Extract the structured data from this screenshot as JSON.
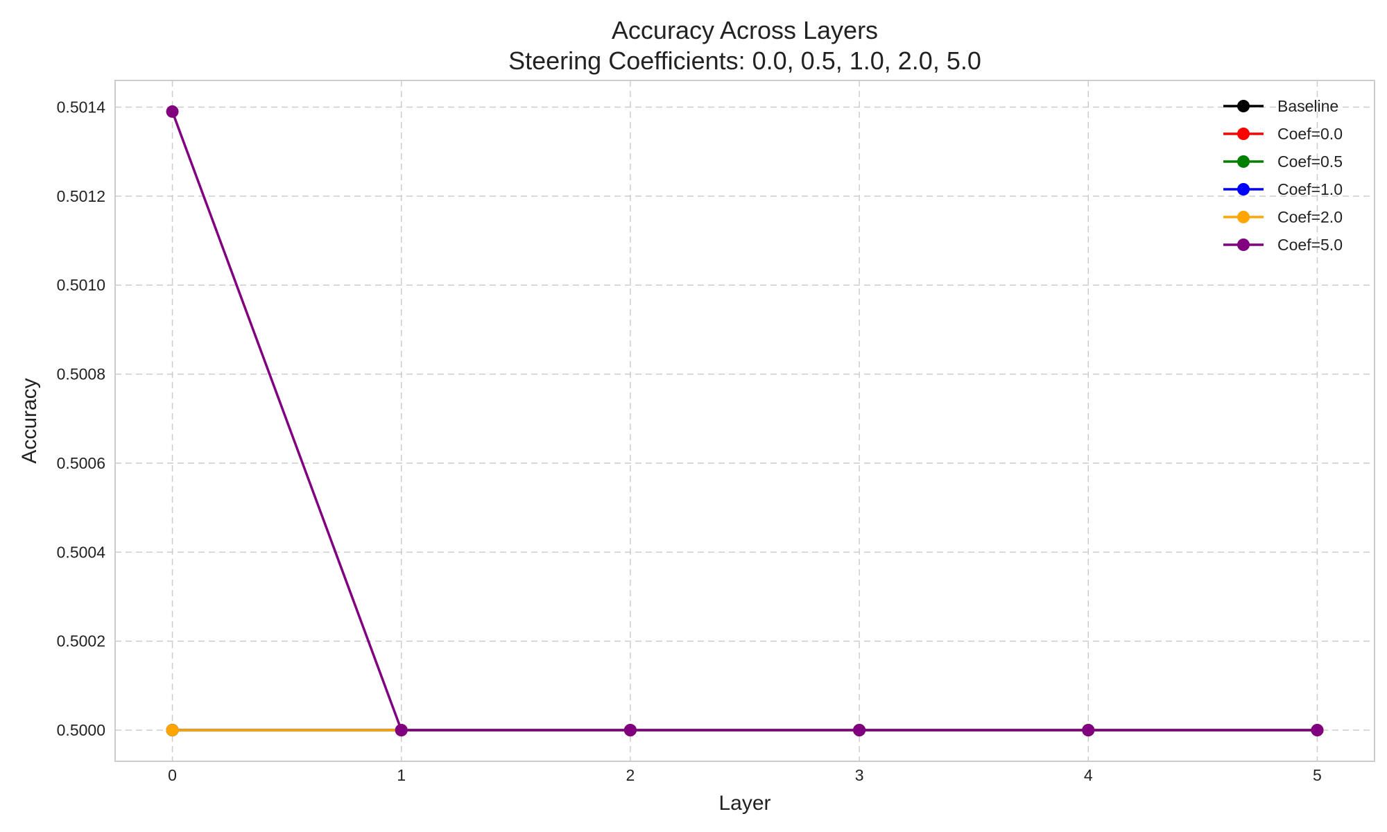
{
  "chart_data": {
    "type": "line",
    "title": "Accuracy Across Layers",
    "subtitle": "Steering Coefficients: 0.0, 0.5, 1.0, 2.0, 5.0",
    "xlabel": "Layer",
    "ylabel": "Accuracy",
    "x": [
      0,
      1,
      2,
      3,
      4,
      5
    ],
    "x_ticks": [
      "0",
      "1",
      "2",
      "3",
      "4",
      "5"
    ],
    "y_ticks": [
      "0.5000",
      "0.5002",
      "0.5004",
      "0.5006",
      "0.5008",
      "0.5010",
      "0.5012",
      "0.5014"
    ],
    "xlim": [
      -0.25,
      5.25
    ],
    "ylim": [
      0.49993,
      0.50146
    ],
    "grid": true,
    "legend_position": "top-right",
    "series": [
      {
        "name": "Baseline",
        "color": "#000000",
        "values": [
          0.5,
          0.5,
          0.5,
          0.5,
          0.5,
          0.5
        ]
      },
      {
        "name": "Coef=0.0",
        "color": "#ff0000",
        "values": [
          0.5,
          0.5,
          0.5,
          0.5,
          0.5,
          0.5
        ]
      },
      {
        "name": "Coef=0.5",
        "color": "#008000",
        "values": [
          0.5,
          0.5,
          0.5,
          0.5,
          0.5,
          0.5
        ]
      },
      {
        "name": "Coef=1.0",
        "color": "#0000ff",
        "values": [
          0.5,
          0.5,
          0.5,
          0.5,
          0.5,
          0.5
        ]
      },
      {
        "name": "Coef=2.0",
        "color": "#ffa500",
        "values": [
          0.5,
          0.5,
          0.5,
          0.5,
          0.5,
          0.5
        ]
      },
      {
        "name": "Coef=5.0",
        "color": "#800080",
        "values": [
          0.50139,
          0.5,
          0.5,
          0.5,
          0.5,
          0.5
        ]
      }
    ]
  }
}
